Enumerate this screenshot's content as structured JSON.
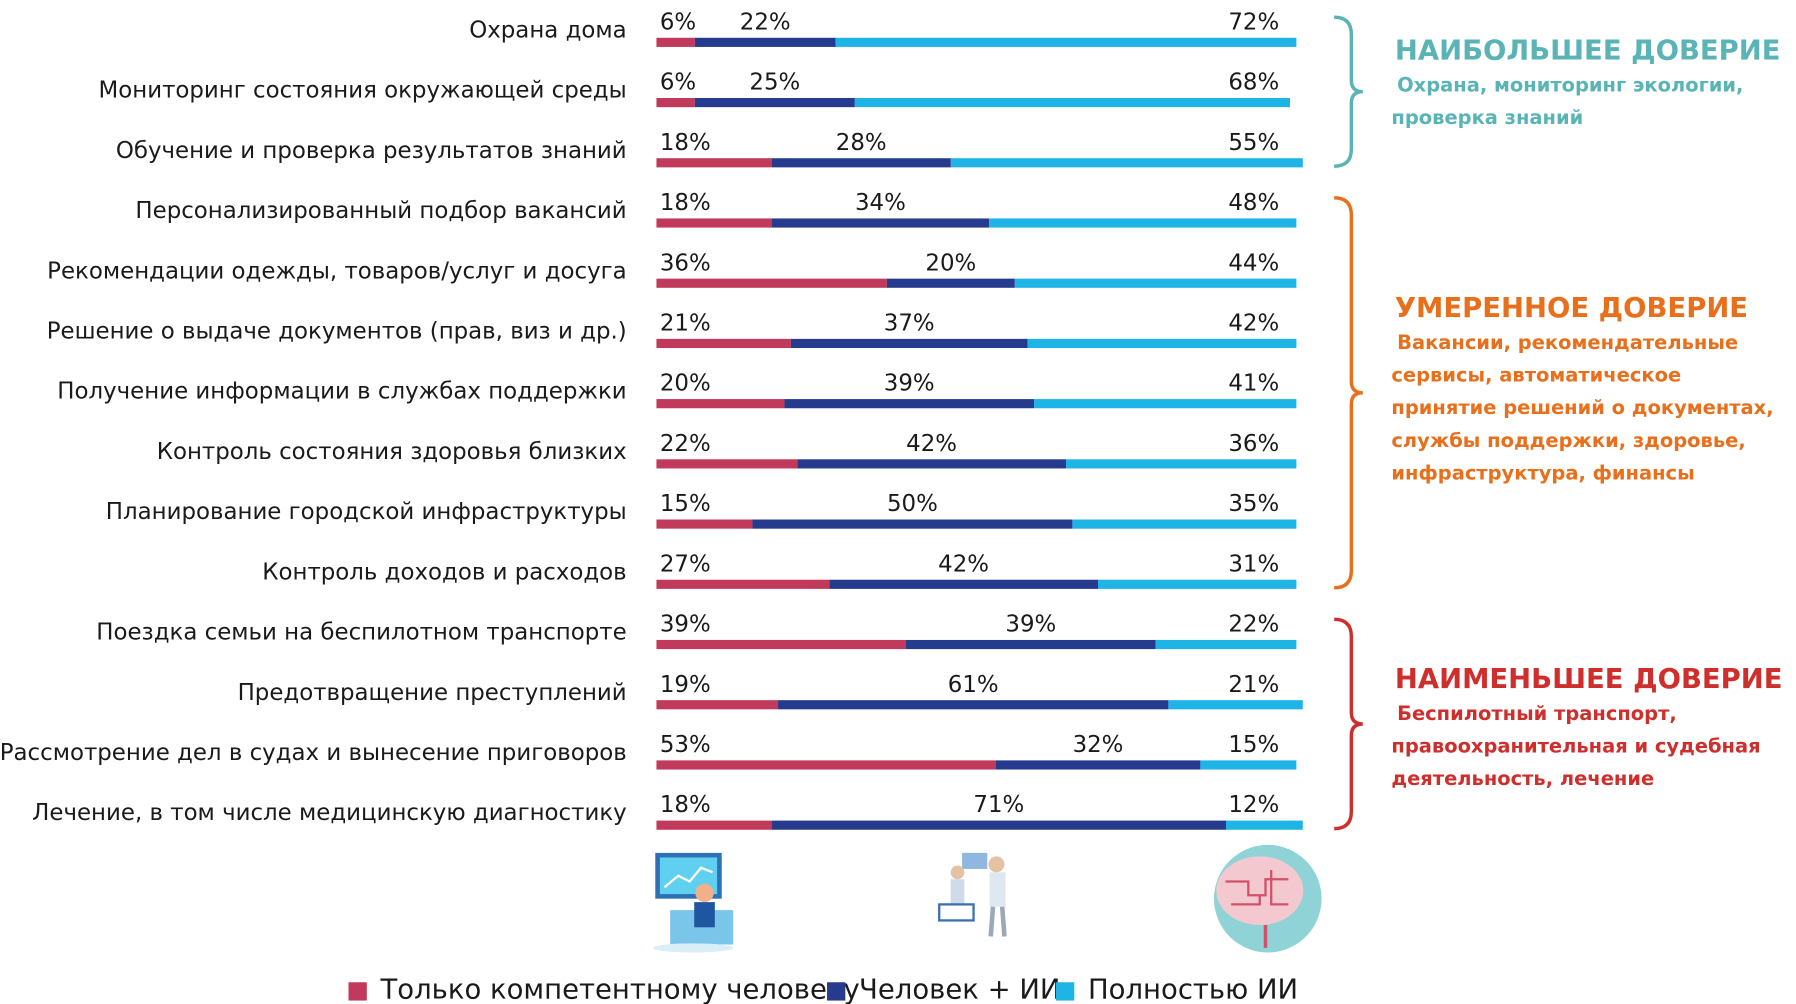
{
  "chart_data": {
    "type": "stacked-bar-horizontal",
    "categories": [
      "Охрана дома",
      "Мониторинг состояния окружающей среды",
      "Обучение и проверка результатов знаний",
      "Персонализированный подбор вакансий",
      "Рекомендации одежды, товаров/услуг и досуга",
      "Решение о выдаче документов (прав, виз и др.)",
      "Получение информации в службах поддержки",
      "Контроль состояния здоровья близких",
      "Планирование городской инфраструктуры",
      "Контроль доходов и расходов",
      "Поездка семьи на беспилотном транспорте",
      "Предотвращение преступлений",
      "Рассмотрение дел в судах и вынесение приговоров",
      "Лечение, в том числе медицинскую диагностику"
    ],
    "xlim": [
      0,
      100
    ],
    "series": [
      {
        "name": "Только компетентному человеку",
        "color": "#c1395b",
        "values": [
          6,
          6,
          18,
          18,
          36,
          21,
          20,
          22,
          15,
          27,
          39,
          19,
          53,
          18
        ],
        "value_labels": [
          "6%",
          "6%",
          "18%",
          "18%",
          "36%",
          "21%",
          "20%",
          "22%",
          "15%",
          "27%",
          "39%",
          "19%",
          "53%",
          "18%"
        ]
      },
      {
        "name": "Человек + ИИ",
        "color": "#263b8d",
        "values": [
          22,
          25,
          28,
          34,
          20,
          37,
          39,
          42,
          50,
          42,
          39,
          61,
          32,
          71
        ],
        "value_labels": [
          "22%",
          "25%",
          "28%",
          "34%",
          "20%",
          "37%",
          "39%",
          "42%",
          "50%",
          "42%",
          "39%",
          "61%",
          "32%",
          "71%"
        ]
      },
      {
        "name": "Полностью ИИ",
        "color": "#1fb4e6",
        "values": [
          72,
          68,
          55,
          48,
          44,
          42,
          41,
          36,
          35,
          31,
          22,
          21,
          15,
          12
        ],
        "value_labels": [
          "72%",
          "68%",
          "55%",
          "48%",
          "44%",
          "42%",
          "41%",
          "36%",
          "35%",
          "31%",
          "22%",
          "21%",
          "15%",
          "12%"
        ]
      }
    ],
    "groups": [
      {
        "title": "НАИБОЛЬШЕЕ ДОВЕРИЕ",
        "color": "#5ab4b6",
        "lines": [
          "Охрана, мониторинг экологии,",
          "проверка знаний"
        ]
      },
      {
        "title": "УМЕРЕННОЕ ДОВЕРИЕ",
        "color": "#e8701c",
        "lines": [
          "Вакансии, рекомендательные",
          "сервисы, автоматическое",
          "принятие решений о документах,",
          "службы поддержки, здоровье,",
          "инфраструктура, финансы"
        ]
      },
      {
        "title": "НАИМЕНЬШЕЕ ДОВЕРИЕ",
        "color": "#cf2f2c",
        "lines": [
          "Беспилотный транспорт,",
          "правоохранительная и судебная",
          "деятельность, лечение"
        ]
      }
    ],
    "legend": "bottom"
  }
}
